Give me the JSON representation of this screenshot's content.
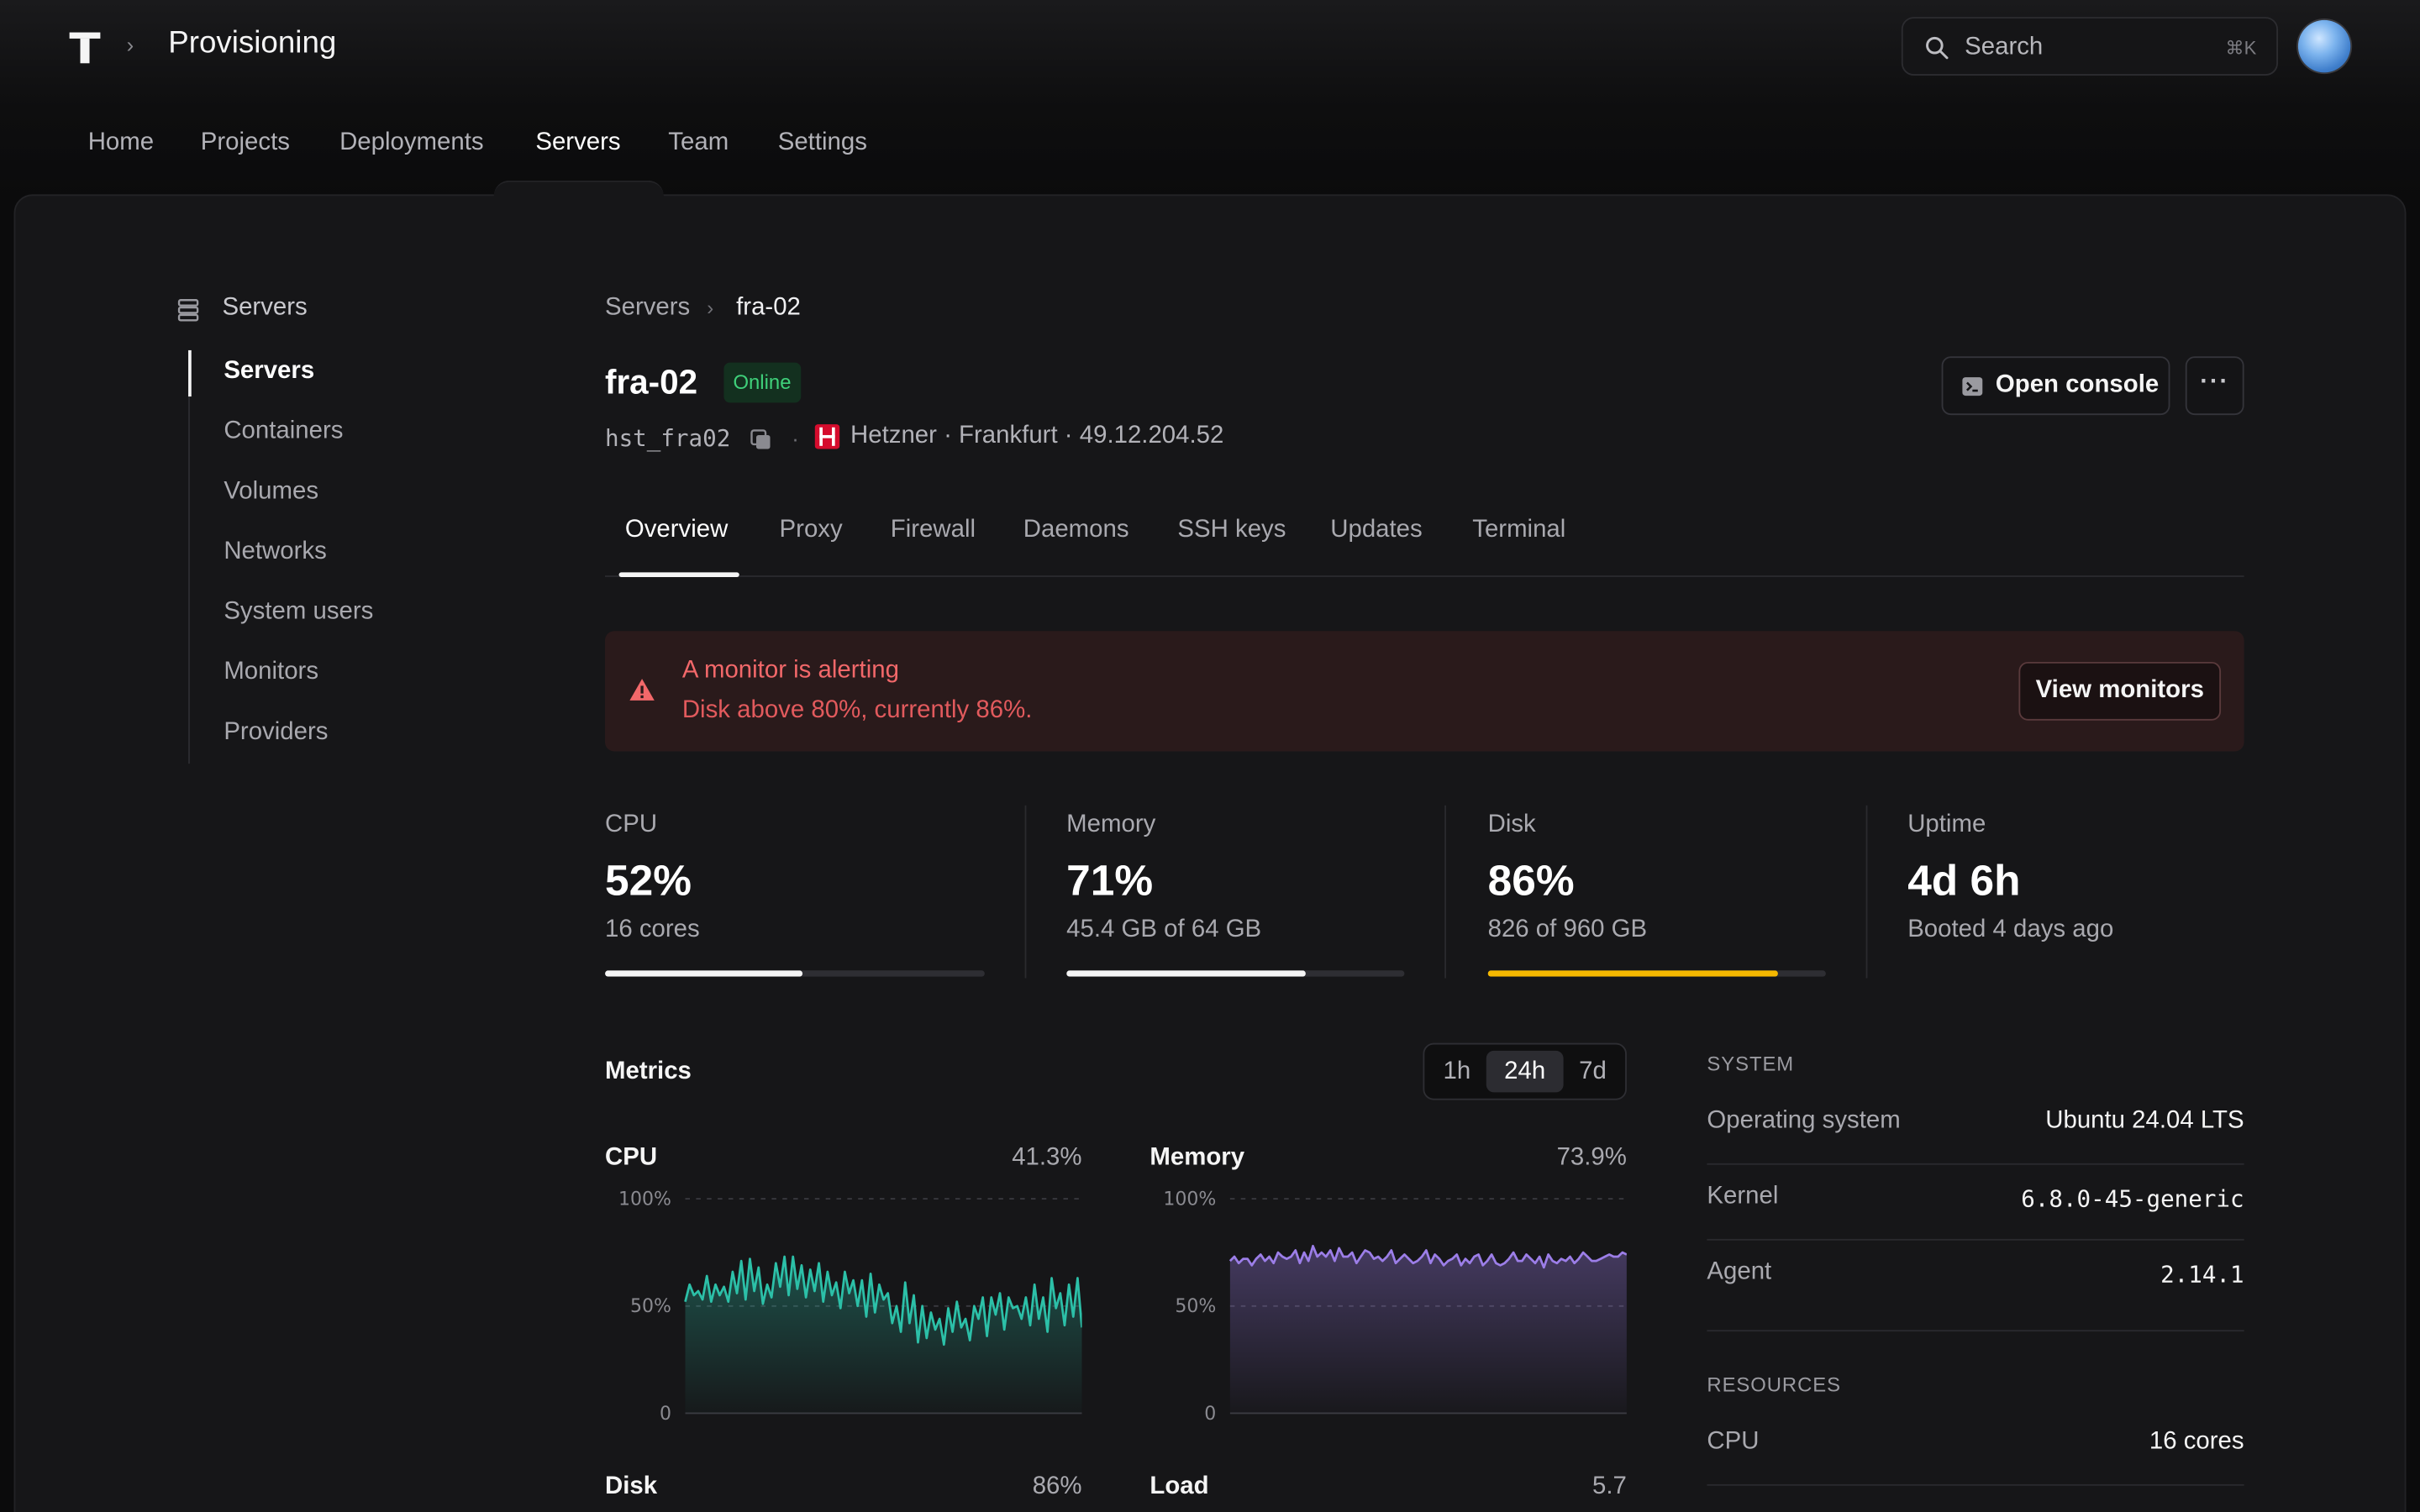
{
  "app": {
    "title": "Provisioning"
  },
  "search": {
    "placeholder": "Search",
    "shortcut": "⌘K"
  },
  "nav": [
    {
      "label": "Home",
      "active": false
    },
    {
      "label": "Projects",
      "active": false
    },
    {
      "label": "Deployments",
      "active": false
    },
    {
      "label": "Servers",
      "active": true
    },
    {
      "label": "Team",
      "active": false
    },
    {
      "label": "Settings",
      "active": false
    }
  ],
  "sidebar": {
    "heading": "Servers",
    "items": [
      {
        "label": "Servers",
        "active": true
      },
      {
        "label": "Containers",
        "active": false
      },
      {
        "label": "Volumes",
        "active": false
      },
      {
        "label": "Networks",
        "active": false
      },
      {
        "label": "System users",
        "active": false
      },
      {
        "label": "Monitors",
        "active": false
      },
      {
        "label": "Providers",
        "active": false
      }
    ]
  },
  "breadcrumb": {
    "parent": "Servers",
    "current": "fra-02"
  },
  "server": {
    "name": "fra-02",
    "status": "Online",
    "host_id": "hst_fra02",
    "provider_line": "Hetzner · Frankfurt · 49.12.204.52",
    "status_color": "#3fd07a",
    "provider_color": "#d50c2d"
  },
  "actions": {
    "open_console": "Open console",
    "more": "···"
  },
  "tabs": [
    "Overview",
    "Proxy",
    "Firewall",
    "Daemons",
    "SSH keys",
    "Updates",
    "Terminal"
  ],
  "alert": {
    "title": "A monitor is alerting",
    "body": "Disk above 80%, currently 86%.",
    "button": "View monitors"
  },
  "stats": [
    {
      "label": "CPU",
      "value": "52%",
      "sub": "16 cores",
      "progress": 0.52,
      "color": "#f5f5f5"
    },
    {
      "label": "Memory",
      "value": "71%",
      "sub": "45.4 GB of 64 GB",
      "progress": 0.71,
      "color": "#f5f5f5"
    },
    {
      "label": "Disk",
      "value": "86%",
      "sub": "826 of 960 GB",
      "progress": 0.86,
      "color": "#f5b800"
    },
    {
      "label": "Uptime",
      "value": "4d 6h",
      "sub": "Booted 4 days ago"
    }
  ],
  "metrics": {
    "title": "Metrics",
    "ranges": [
      "1h",
      "24h",
      "7d"
    ],
    "selected_range": "24h",
    "y_labels": [
      "100%",
      "50%",
      "0"
    ],
    "charts": [
      {
        "name": "CPU",
        "value": "41.3%",
        "color": "#2cc0a8",
        "series": [
          52,
          60,
          55,
          57,
          53,
          64,
          52,
          60,
          55,
          59,
          52,
          66,
          56,
          71,
          53,
          72,
          57,
          68,
          51,
          60,
          54,
          70,
          59,
          73,
          55,
          73,
          58,
          69,
          54,
          67,
          57,
          70,
          52,
          66,
          55,
          61,
          49,
          66,
          56,
          62,
          50,
          62,
          45,
          65,
          47,
          60,
          53,
          56,
          42,
          50,
          38,
          61,
          42,
          55,
          33,
          50,
          35,
          47,
          39,
          44,
          32,
          49,
          38,
          52,
          40,
          44,
          34,
          50,
          44,
          54,
          36,
          54,
          46,
          56,
          39,
          54,
          49,
          50,
          44,
          54,
          41,
          60,
          44,
          54,
          38,
          63,
          49,
          56,
          41,
          60,
          45,
          63,
          40
        ]
      },
      {
        "name": "Memory",
        "value": "73.9%",
        "color": "#9c7ee8",
        "series": [
          71,
          73,
          70,
          72,
          72,
          69,
          72,
          74,
          71,
          73,
          70,
          75,
          73,
          72,
          73,
          76,
          70,
          75,
          71,
          78,
          73,
          75,
          73,
          76,
          71,
          77,
          73,
          73,
          75,
          70,
          73,
          76,
          75,
          72,
          73,
          71,
          73,
          76,
          70,
          72,
          74,
          72,
          70,
          71,
          73,
          76,
          70,
          74,
          72,
          69,
          71,
          72,
          74,
          69,
          72,
          70,
          73,
          74,
          69,
          71,
          74,
          70,
          69,
          70,
          72,
          75,
          71,
          71,
          74,
          72,
          70,
          73,
          68,
          74,
          71,
          70,
          72,
          71,
          73,
          70,
          72,
          75,
          73,
          71,
          71,
          72,
          73,
          74,
          73,
          73,
          75,
          74
        ]
      }
    ],
    "more_charts": [
      {
        "name": "Disk",
        "value": "86%"
      },
      {
        "name": "Load",
        "value": "5.7"
      }
    ]
  },
  "system": {
    "title": "SYSTEM",
    "rows": [
      {
        "key": "Operating system",
        "value": "Ubuntu 24.04 LTS"
      },
      {
        "key": "Kernel",
        "value": "6.8.0-45-generic"
      },
      {
        "key": "Agent",
        "value": "2.14.1"
      }
    ]
  },
  "resources": {
    "title": "RESOURCES",
    "rows": [
      {
        "key": "CPU",
        "value": "16 cores"
      }
    ]
  }
}
